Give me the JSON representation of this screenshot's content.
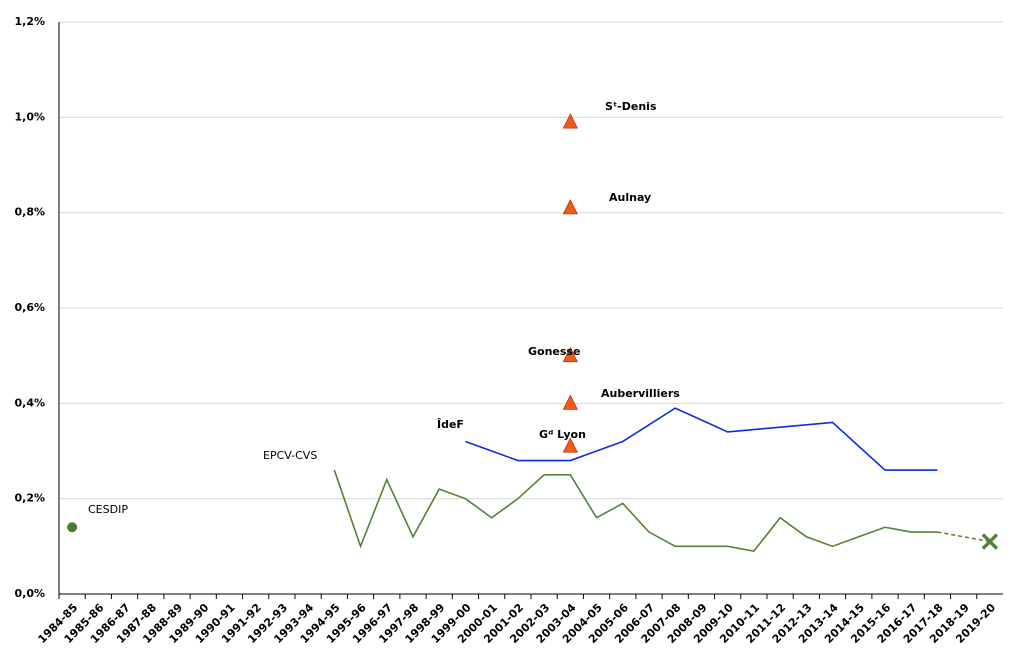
{
  "chart_data": {
    "type": "line",
    "categories": [
      "1984-85",
      "1985-86",
      "1986-87",
      "1987-88",
      "1988-89",
      "1989-90",
      "1990-91",
      "1991-92",
      "1992-93",
      "1993-94",
      "1994-95",
      "1995-96",
      "1996-97",
      "1997-98",
      "1998-99",
      "1999-00",
      "2000-01",
      "2001-02",
      "2002-03",
      "2003-04",
      "2004-05",
      "2005-06",
      "2006-07",
      "2007-08",
      "2008-09",
      "2009-10",
      "2010-11",
      "2011-12",
      "2012-13",
      "2013-14",
      "2014-15",
      "2015-16",
      "2016-17",
      "2017-18",
      "2018-19",
      "2019-20"
    ],
    "ylim": [
      0,
      1.2
    ],
    "yticks": [
      {
        "value": 0,
        "label": "0,0%"
      },
      {
        "value": 0.2,
        "label": "0,2%"
      },
      {
        "value": 0.4,
        "label": "0,4%"
      },
      {
        "value": 0.6,
        "label": "0,6%"
      },
      {
        "value": 0.8,
        "label": "0,8%"
      },
      {
        "value": 1.0,
        "label": "1,0%"
      },
      {
        "value": 1.2,
        "label": "1,2%"
      }
    ],
    "grid": true,
    "series": [
      {
        "name": "CESDIP",
        "color": "#4e7a2c",
        "marker": "circle",
        "values": [
          0.14,
          null,
          null,
          null,
          null,
          null,
          null,
          null,
          null,
          null,
          null,
          null,
          null,
          null,
          null,
          null,
          null,
          null,
          null,
          null,
          null,
          null,
          null,
          null,
          null,
          null,
          null,
          null,
          null,
          null,
          null,
          null,
          null,
          null,
          null,
          null
        ]
      },
      {
        "name": "EPCV-CVS",
        "color": "#548235",
        "gap_style": "dashed",
        "last_marker": "x",
        "values": [
          null,
          null,
          null,
          null,
          null,
          null,
          null,
          null,
          null,
          null,
          0.26,
          0.1,
          0.24,
          0.12,
          0.22,
          0.2,
          0.16,
          0.2,
          0.25,
          0.25,
          0.16,
          0.19,
          0.13,
          0.1,
          0.1,
          0.1,
          0.09,
          0.16,
          0.12,
          0.1,
          0.12,
          0.14,
          0.13,
          0.13,
          null,
          0.11
        ]
      },
      {
        "name": "ÎdeF",
        "color": "#0a2fe0",
        "values": [
          null,
          null,
          null,
          null,
          null,
          null,
          null,
          null,
          null,
          null,
          null,
          null,
          null,
          null,
          null,
          0.32,
          0.3,
          0.28,
          0.28,
          0.28,
          0.3,
          0.32,
          0.355,
          0.39,
          0.365,
          0.34,
          0.345,
          0.35,
          0.355,
          0.36,
          0.31,
          0.26,
          0.26,
          0.26,
          null,
          null
        ]
      }
    ],
    "points": [
      {
        "label": "Sᵗ-Denis",
        "category": "2003-04",
        "value": 0.99
      },
      {
        "label": "Aulnay",
        "category": "2003-04",
        "value": 0.81
      },
      {
        "label": "Gonesse",
        "category": "2003-04",
        "value": 0.5
      },
      {
        "label": "Aubervilliers",
        "category": "2003-04",
        "value": 0.4
      },
      {
        "label": "Gᵈ Lyon",
        "category": "2003-04",
        "value": 0.31
      }
    ],
    "points_color": "#f05a1a"
  }
}
